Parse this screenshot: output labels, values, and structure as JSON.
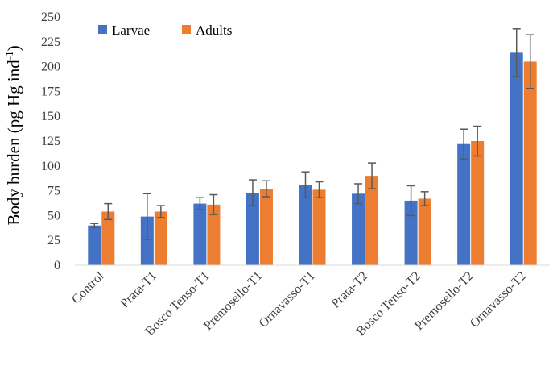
{
  "chart_data": {
    "type": "bar",
    "title": "",
    "xlabel": "",
    "ylabel": "Body burden (pg Hg ind",
    "ylabel_superscript": "-1",
    "ylabel_close": ")",
    "ylim": [
      0,
      250
    ],
    "yticks": [
      0,
      25,
      50,
      75,
      100,
      125,
      150,
      175,
      200,
      225,
      250
    ],
    "grid": false,
    "legend_position": "top-left",
    "categories": [
      "Control",
      "Prata-T1",
      "Bosco Tenso-T1",
      "Premosello-T1",
      "Ornavasso-T1",
      "Prata-T2",
      "Bosco Tenso-T2",
      "Premosello-T2",
      "Ornavasso-T2"
    ],
    "series": [
      {
        "name": "Larvae",
        "color": "#4472c4",
        "values": [
          40,
          49,
          62,
          73,
          81,
          72,
          65,
          122,
          214
        ],
        "errors": [
          2,
          23,
          6,
          13,
          13,
          10,
          15,
          15,
          24
        ]
      },
      {
        "name": "Adults",
        "color": "#ed7d31",
        "values": [
          54,
          54,
          61,
          77,
          76,
          90,
          67,
          125,
          205
        ],
        "errors": [
          8,
          6,
          10,
          8,
          8,
          13,
          7,
          15,
          27
        ]
      }
    ]
  }
}
